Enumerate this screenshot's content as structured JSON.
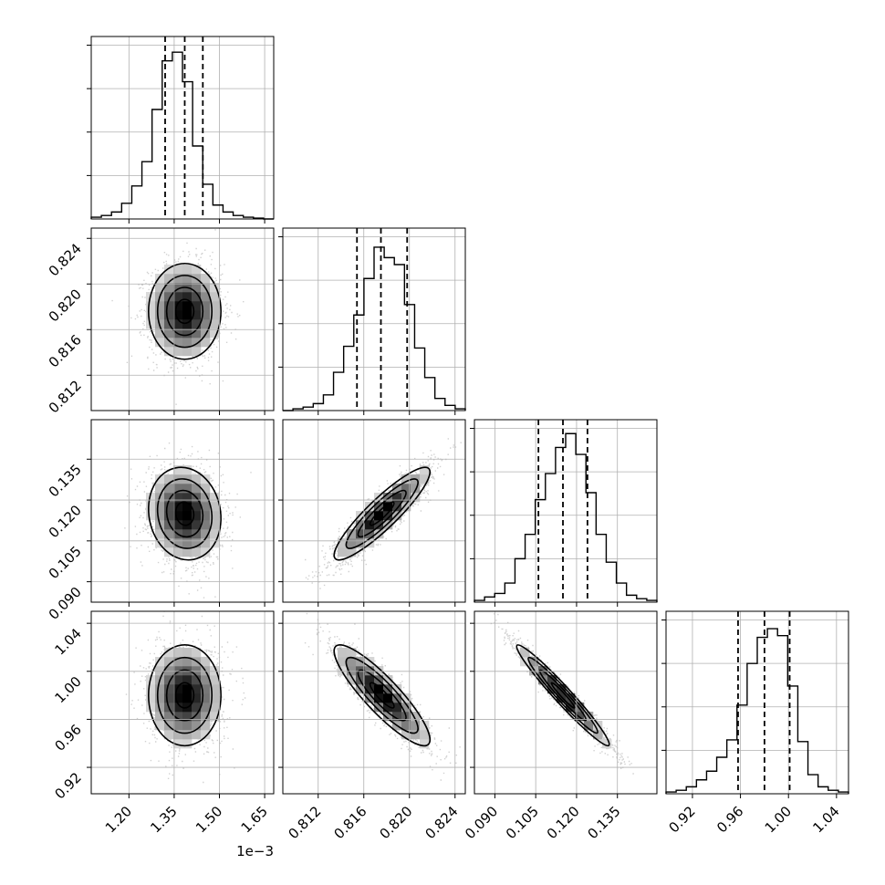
{
  "chart_data": {
    "type": "corner",
    "title": "",
    "grid": true,
    "parameters": [
      {
        "label": "",
        "offset_text": "1e−3",
        "range": [
          1.075,
          1.68
        ],
        "ticks": [
          1.2,
          1.35,
          1.5,
          1.65
        ],
        "tick_labels": [
          "1.20",
          "1.35",
          "1.50",
          "1.65"
        ],
        "quantiles": [
          1.32,
          1.385,
          1.445
        ],
        "mean": 1.385,
        "sd": 0.06,
        "hist": [
          0.01,
          0.02,
          0.04,
          0.09,
          0.19,
          0.33,
          0.63,
          0.91,
          0.96,
          0.79,
          0.42,
          0.2,
          0.08,
          0.04,
          0.02,
          0.01,
          0.005,
          0.0
        ]
      },
      {
        "label": "",
        "offset_text": "",
        "range": [
          0.8089,
          0.8249
        ],
        "ticks": [
          0.812,
          0.816,
          0.82,
          0.824
        ],
        "tick_labels": [
          "0.812",
          "0.816",
          "0.820",
          "0.824"
        ],
        "quantiles": [
          0.8154,
          0.8175,
          0.8198
        ],
        "mean": 0.8176,
        "sd": 0.0021,
        "hist": [
          0.0,
          0.01,
          0.02,
          0.04,
          0.09,
          0.22,
          0.37,
          0.55,
          0.76,
          0.94,
          0.88,
          0.84,
          0.61,
          0.36,
          0.19,
          0.07,
          0.03,
          0.01
        ]
      },
      {
        "label": "",
        "offset_text": "",
        "range": [
          0.0825,
          0.1495
        ],
        "ticks": [
          0.09,
          0.105,
          0.12,
          0.135
        ],
        "tick_labels": [
          "0.090",
          "0.105",
          "0.120",
          "0.135"
        ],
        "quantiles": [
          0.106,
          0.115,
          0.124
        ],
        "mean": 0.115,
        "sd": 0.0085,
        "hist": [
          0.01,
          0.03,
          0.05,
          0.11,
          0.25,
          0.39,
          0.59,
          0.74,
          0.89,
          0.97,
          0.85,
          0.63,
          0.39,
          0.23,
          0.11,
          0.04,
          0.02,
          0.01
        ]
      },
      {
        "label": "",
        "offset_text": "",
        "range": [
          0.898,
          1.05
        ],
        "ticks": [
          0.92,
          0.96,
          1.0,
          1.04
        ],
        "tick_labels": [
          "0.92",
          "0.96",
          "1.00",
          "1.04"
        ],
        "quantiles": [
          0.958,
          0.98,
          1.001
        ],
        "mean": 0.98,
        "sd": 0.021,
        "hist": [
          0.01,
          0.02,
          0.04,
          0.08,
          0.13,
          0.21,
          0.31,
          0.51,
          0.75,
          0.9,
          0.95,
          0.91,
          0.62,
          0.3,
          0.11,
          0.04,
          0.02,
          0.01
        ]
      }
    ],
    "correlations": {
      "1-0": 0.0,
      "2-0": -0.1,
      "2-1": 0.9,
      "3-0": 0.0,
      "3-1": -0.88,
      "3-2": -0.97
    }
  }
}
